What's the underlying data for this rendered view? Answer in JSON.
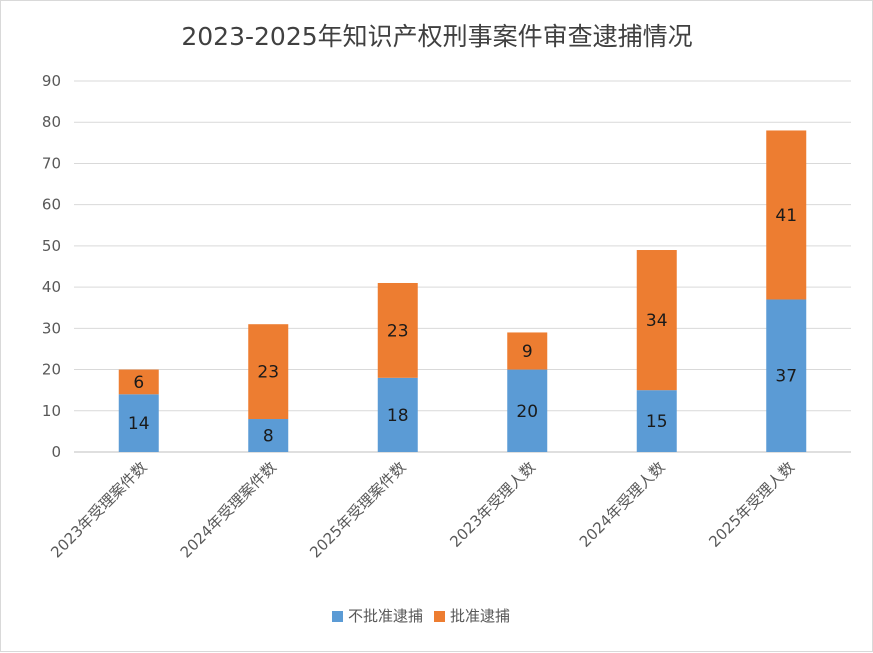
{
  "chart_data": {
    "type": "bar",
    "stacked": true,
    "title": "2023-2025年知识产权刑事案件审查逮捕情况",
    "categories": [
      "2023年受理案件数",
      "2024年受理案件数",
      "2025年受理案件数",
      "2023年受理人数",
      "2024年受理人数",
      "2025年受理人数"
    ],
    "series": [
      {
        "name": "不批准逮捕",
        "color": "#5b9bd5",
        "values": [
          14,
          8,
          18,
          20,
          15,
          37
        ]
      },
      {
        "name": "批准逮捕",
        "color": "#ed7d31",
        "values": [
          6,
          23,
          23,
          9,
          34,
          41
        ]
      }
    ],
    "ylim": [
      0,
      90
    ],
    "yticks": [
      0,
      10,
      20,
      30,
      40,
      50,
      60,
      70,
      80,
      90
    ],
    "xlabel": "",
    "ylabel": "",
    "grid": true,
    "legend": "bottom"
  }
}
